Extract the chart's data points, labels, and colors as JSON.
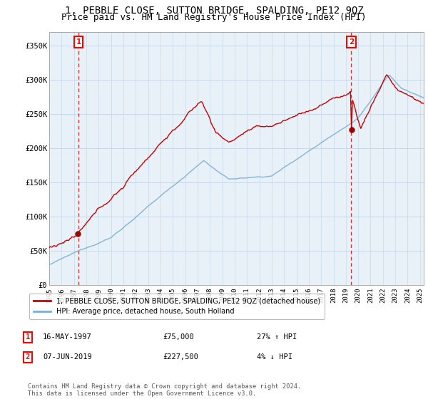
{
  "title": "1, PEBBLE CLOSE, SUTTON BRIDGE, SPALDING, PE12 9QZ",
  "subtitle": "Price paid vs. HM Land Registry's House Price Index (HPI)",
  "ylim": [
    0,
    370000
  ],
  "yticks": [
    0,
    50000,
    100000,
    150000,
    200000,
    250000,
    300000,
    350000
  ],
  "ytick_labels": [
    "£0",
    "£50K",
    "£100K",
    "£150K",
    "£200K",
    "£250K",
    "£300K",
    "£350K"
  ],
  "start_year": 1995.0,
  "end_year": 2025.3,
  "hpi_color": "#7aaddb",
  "price_color": "#cc0000",
  "dashed_color": "#cc0000",
  "marker_color": "#990000",
  "legend_price_label": "1, PEBBLE CLOSE, SUTTON BRIDGE, SPALDING, PE12 9QZ (detached house)",
  "legend_hpi_label": "HPI: Average price, detached house, South Holland",
  "sale1_date": 1997.37,
  "sale1_price": 75000,
  "sale1_label": "1",
  "sale2_date": 2019.43,
  "sale2_price": 227500,
  "sale2_label": "2",
  "annotation1_date": "16-MAY-1997",
  "annotation1_price": "£75,000",
  "annotation1_hpi": "27% ↑ HPI",
  "annotation2_date": "07-JUN-2019",
  "annotation2_price": "£227,500",
  "annotation2_hpi": "4% ↓ HPI",
  "footnote": "Contains HM Land Registry data © Crown copyright and database right 2024.\nThis data is licensed under the Open Government Licence v3.0.",
  "background_color": "#ffffff",
  "plot_bg_color": "#e8f0f8",
  "grid_color": "#c8d8e8",
  "title_fontsize": 10,
  "subtitle_fontsize": 9
}
